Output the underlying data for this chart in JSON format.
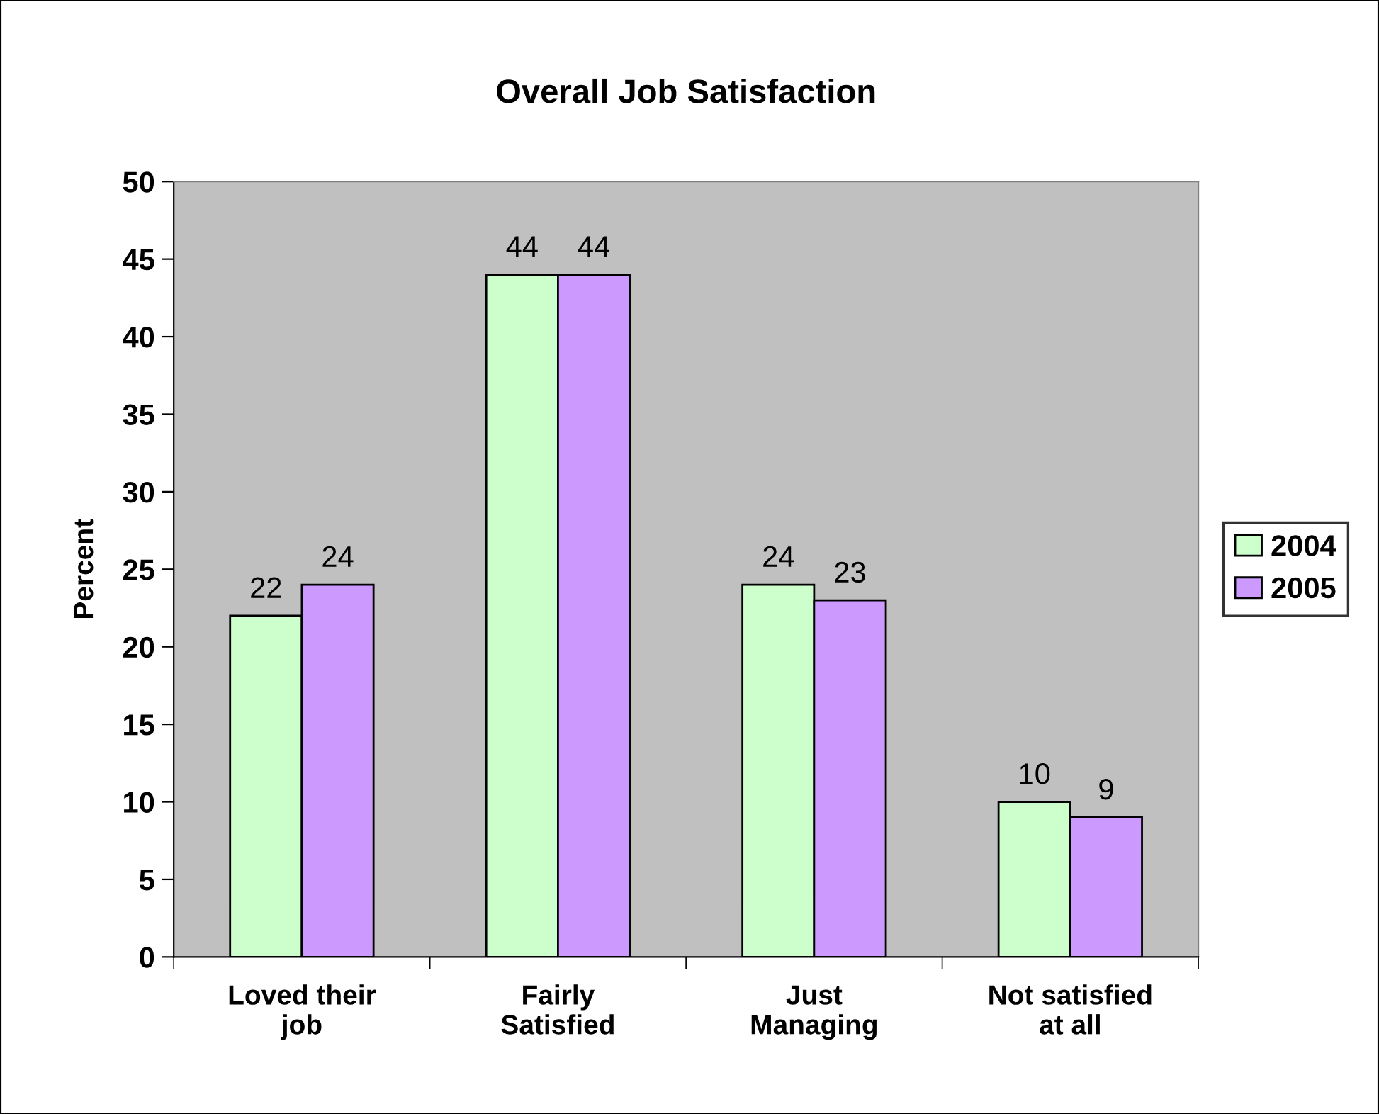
{
  "chart_data": {
    "type": "bar",
    "title": "Overall Job Satisfaction",
    "ylabel": "Percent",
    "categories": [
      "Loved their\njob",
      "Fairly\nSatisfied",
      "Just\nManaging",
      "Not satisfied\nat all"
    ],
    "series": [
      {
        "name": "2004",
        "color": "#ccffcc",
        "values": [
          22,
          44,
          24,
          10
        ]
      },
      {
        "name": "2005",
        "color": "#cc99ff",
        "values": [
          24,
          44,
          23,
          9
        ]
      }
    ],
    "ylim": [
      0,
      50
    ],
    "yticks": [
      0,
      5,
      10,
      15,
      20,
      25,
      30,
      35,
      40,
      45,
      50
    ],
    "grid": false,
    "legend": "right",
    "data_labels": true
  }
}
